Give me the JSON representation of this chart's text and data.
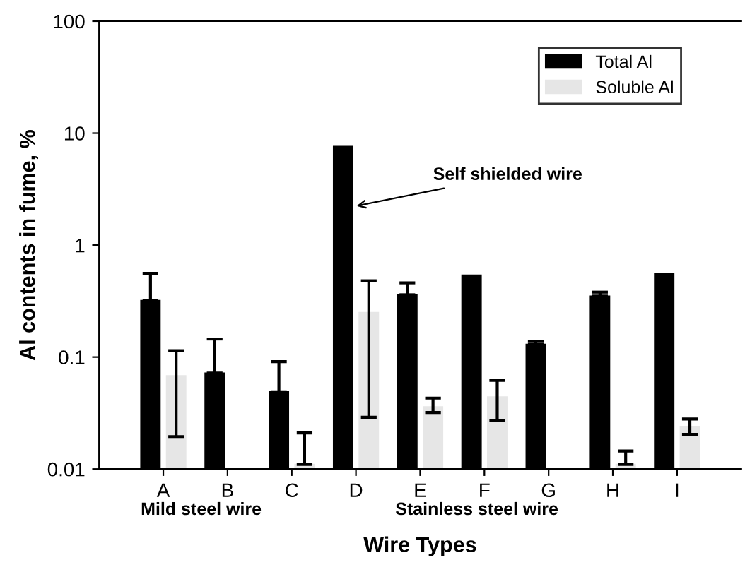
{
  "chart_data": {
    "type": "bar",
    "xlabel": "Wire Types",
    "ylabel": "Al contents in fume, %",
    "categories": [
      "A",
      "B",
      "C",
      "D",
      "E",
      "F",
      "G",
      "H",
      "I"
    ],
    "series": [
      {
        "name": "Total Al",
        "color": "#000000",
        "values": [
          0.32,
          0.072,
          0.049,
          7.6,
          0.36,
          0.54,
          0.13,
          0.35,
          0.56
        ],
        "errors": [
          [
            0.32,
            0.56
          ],
          [
            0.072,
            0.145
          ],
          [
            0.049,
            0.091
          ],
          null,
          [
            0.36,
            0.46
          ],
          null,
          [
            0.13,
            0.138
          ],
          [
            0.35,
            0.38
          ],
          null
        ]
      },
      {
        "name": "Soluble Al",
        "color": "#e6e6e6",
        "values": [
          0.068,
          null,
          0.011,
          0.25,
          0.036,
          0.044,
          null,
          0.011,
          0.024
        ],
        "errors": [
          [
            0.0195,
            0.114
          ],
          null,
          [
            0.011,
            0.021
          ],
          [
            0.029,
            0.48
          ],
          [
            0.032,
            0.043
          ],
          [
            0.027,
            0.062
          ],
          null,
          [
            0.011,
            0.0145
          ],
          [
            0.0204,
            0.028
          ]
        ]
      }
    ],
    "log": "y",
    "ylim": [
      0.01,
      100
    ],
    "yticks": [
      0.01,
      0.1,
      1,
      10,
      100
    ],
    "grid": false,
    "legend": "top right",
    "annotations": [
      {
        "text": "Self shielded wire",
        "x": "D",
        "y": 2.2
      },
      "Mild steel wire",
      "Stainless steel wire"
    ]
  }
}
